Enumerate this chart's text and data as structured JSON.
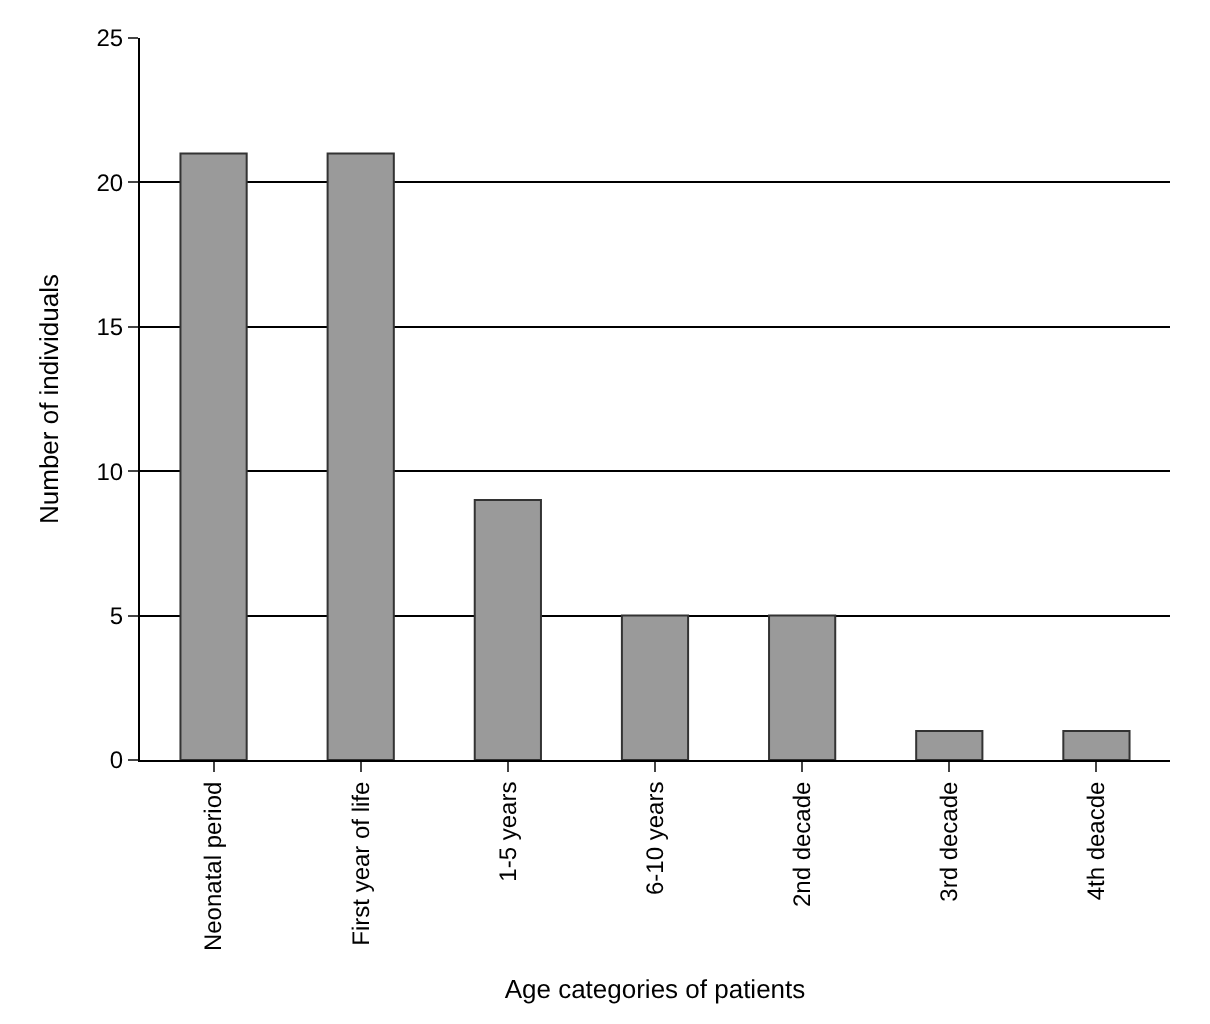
{
  "chart_data": {
    "type": "bar",
    "categories": [
      "Neonatal period",
      "First year of life",
      "1-5 years",
      "6-10 years",
      "2nd decade",
      "3rd decade",
      "4th deacde"
    ],
    "values": [
      21,
      21,
      9,
      5,
      5,
      1,
      1
    ],
    "color": "#9a9a9a",
    "xlabel": "Age categories of patients",
    "ylabel": "Number of individuals",
    "ylim": [
      0,
      25
    ],
    "yticks": [
      0,
      5,
      10,
      15,
      20,
      25
    ],
    "grid": "y",
    "legend": false
  }
}
